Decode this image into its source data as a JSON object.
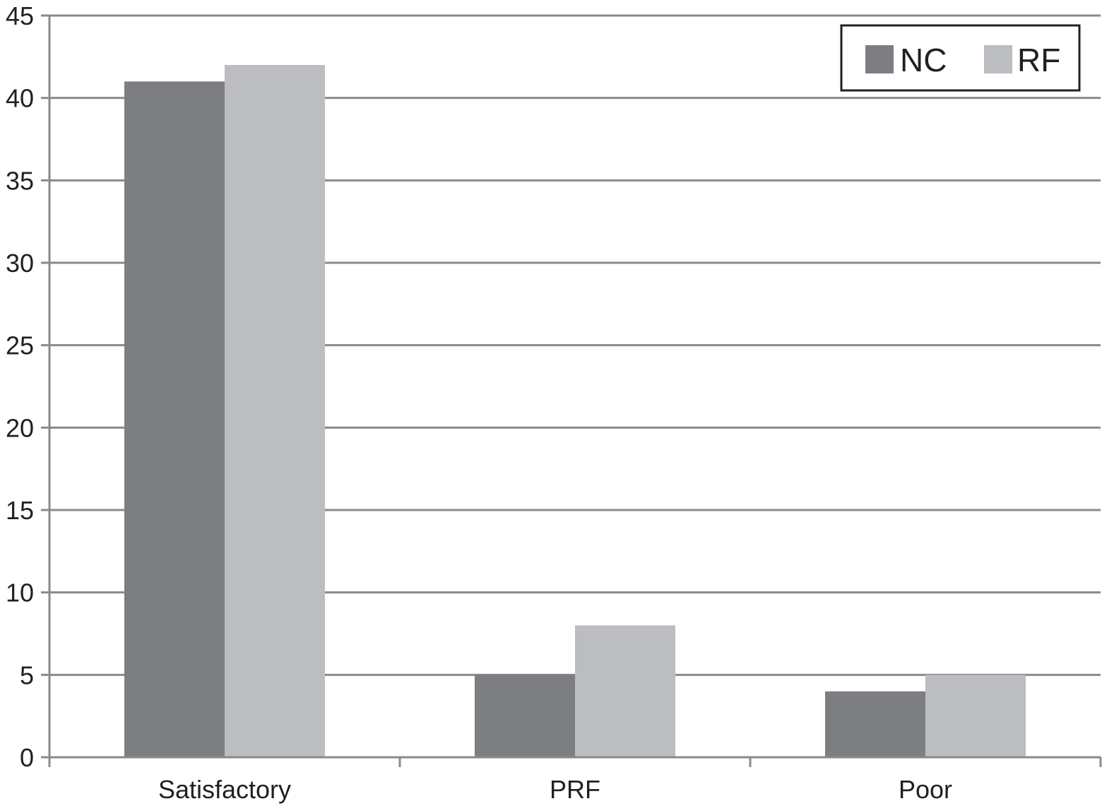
{
  "chart_data": {
    "type": "bar",
    "categories": [
      "Satisfactory",
      "PRF",
      "Poor"
    ],
    "series": [
      {
        "name": "NC",
        "values": [
          41,
          5,
          4
        ],
        "color": "#7d7e82"
      },
      {
        "name": "RF",
        "values": [
          42,
          8,
          5
        ],
        "color": "#bcbdc0"
      }
    ],
    "ylim": [
      0,
      45
    ],
    "yticks": [
      0,
      5,
      10,
      15,
      20,
      25,
      30,
      35,
      40,
      45
    ],
    "ytick_labels": [
      "0",
      "5",
      "10",
      "15",
      "20",
      "25",
      "30",
      "35",
      "40",
      "45"
    ],
    "grid": true,
    "legend_position": "top-right",
    "title": "",
    "xlabel": "",
    "ylabel": ""
  }
}
